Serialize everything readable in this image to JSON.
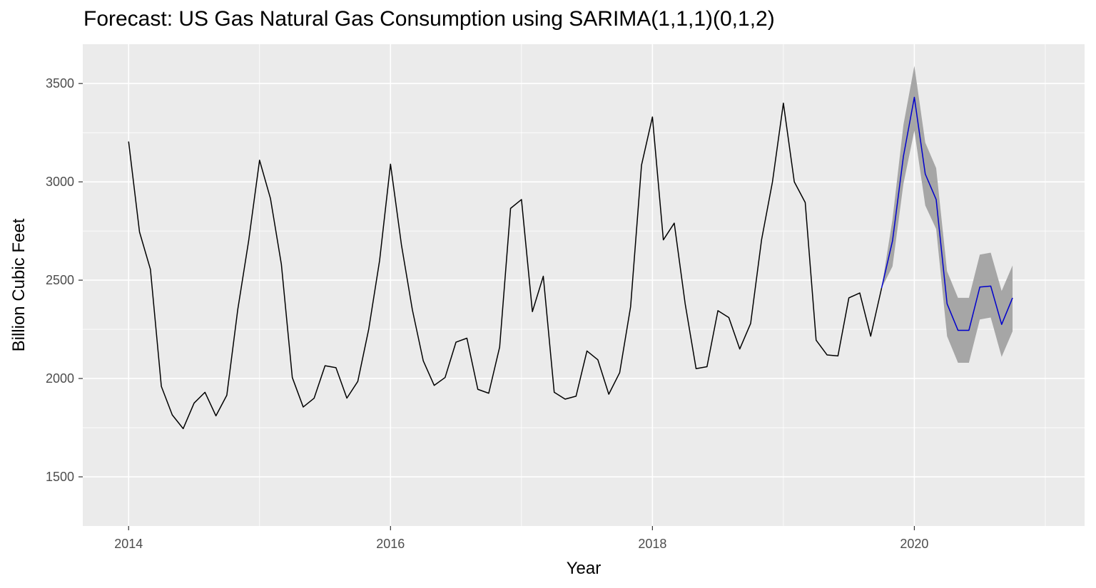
{
  "chart_data": {
    "type": "line",
    "title": "Forecast: US Gas Natural Gas Consumption using SARIMA(1,1,1)(0,1,2)",
    "xlabel": "Year",
    "ylabel": "Billion Cubic Feet",
    "xlim": [
      2013.65,
      2021.3
    ],
    "ylim": [
      1250,
      3700
    ],
    "x_ticks": [
      2014,
      2016,
      2018,
      2020
    ],
    "x_tick_labels": [
      "2014",
      "2016",
      "2018",
      "2020"
    ],
    "y_ticks": [
      1500,
      2000,
      2500,
      3000,
      3500
    ],
    "y_tick_labels": [
      "1500",
      "2000",
      "2500",
      "3000",
      "3500"
    ],
    "grid": true,
    "background": "#ebebeb",
    "gridline_color": "#ffffff",
    "series": [
      {
        "color": "#000000",
        "x_start": 2014.0,
        "x_step": 0.0833333,
        "values": [
          3205,
          2745,
          2555,
          1960,
          1815,
          1745,
          1875,
          1930,
          1810,
          1915,
          2350,
          2700,
          3110,
          2915,
          2580,
          2005,
          1855,
          1900,
          2065,
          2055,
          1900,
          1985,
          2250,
          2600,
          3090,
          2680,
          2350,
          2090,
          1965,
          2005,
          2185,
          2205,
          1945,
          1925,
          2160,
          2865,
          2910,
          2340,
          2520,
          1930,
          1895,
          1910,
          2140,
          2095,
          1920,
          2030,
          2365,
          3085,
          3330,
          2705,
          2790,
          2380,
          2050,
          2060,
          2345,
          2310,
          2150,
          2280,
          2705,
          3000,
          3400,
          3000,
          2895,
          2195,
          2120,
          2115,
          2410,
          2435,
          2215,
          2460
        ]
      },
      {
        "color": "#0000cc",
        "x_start": 2019.75,
        "x_step": 0.0833333,
        "values": [
          2460,
          2700,
          3130,
          3430,
          3040,
          2910,
          2380,
          2245,
          2245,
          2465,
          2470,
          2275,
          2410
        ],
        "lower": [
          2460,
          2570,
          2990,
          3260,
          2880,
          2760,
          2215,
          2080,
          2080,
          2300,
          2310,
          2110,
          2240
        ],
        "upper": [
          2460,
          2810,
          3290,
          3590,
          3200,
          3070,
          2545,
          2410,
          2410,
          2630,
          2640,
          2445,
          2575
        ],
        "band_color": "#a6a6a6"
      }
    ]
  }
}
